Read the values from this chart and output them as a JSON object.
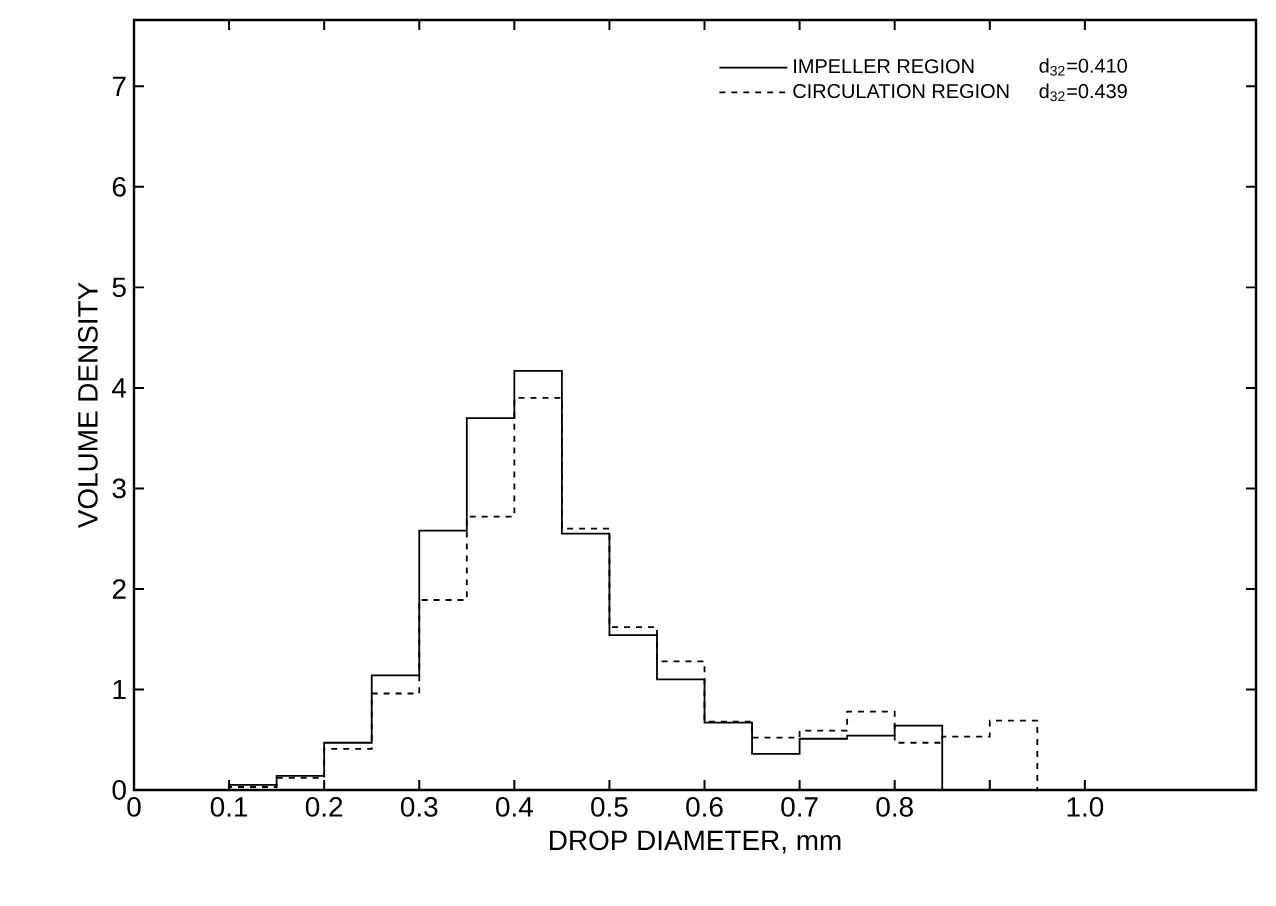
{
  "chart_data": {
    "type": "step",
    "xlabel": "DROP DIAMETER, mm",
    "ylabel": "VOLUME DENSITY",
    "series": [
      {
        "name": "IMPELLER REGION",
        "color": "#000000",
        "line_style": "solid",
        "x": [
          0.1,
          0.1,
          0.15,
          0.2,
          0.25,
          0.3,
          0.35,
          0.4,
          0.45,
          0.5,
          0.55,
          0.6,
          0.65,
          0.7,
          0.75,
          0.8,
          0.85,
          0.85
        ],
        "values": [
          0,
          0.05,
          0.14,
          0.47,
          1.14,
          2.58,
          3.7,
          4.17,
          2.55,
          1.54,
          1.1,
          0.67,
          0.36,
          0.51,
          0.54,
          0.64,
          0.64,
          0
        ]
      },
      {
        "name": "CIRCULATION REGION",
        "color": "#000000",
        "line_style": "dashed",
        "x": [
          0.1,
          0.1,
          0.15,
          0.2,
          0.25,
          0.3,
          0.35,
          0.4,
          0.45,
          0.5,
          0.55,
          0.6,
          0.65,
          0.7,
          0.75,
          0.8,
          0.85,
          0.9,
          0.95,
          0.95
        ],
        "values": [
          0,
          0.03,
          0.12,
          0.41,
          0.96,
          1.89,
          2.72,
          3.9,
          2.6,
          1.62,
          1.28,
          0.68,
          0.52,
          0.59,
          0.78,
          0.47,
          0.53,
          0.69,
          0.69,
          0
        ]
      }
    ],
    "annotations": [
      "d$_{32}$=0.410",
      "d$_{32}$=0.439"
    ],
    "xlim": [
      0,
      1.18
    ],
    "ylim": [
      0,
      7.66
    ],
    "xticks": [
      {
        "value": 0,
        "label": "0"
      },
      {
        "value": 0.1,
        "label": "0.1"
      },
      {
        "value": 0.2,
        "label": "0.2"
      },
      {
        "value": 0.3,
        "label": "0.3"
      },
      {
        "value": 0.4,
        "label": "0.4"
      },
      {
        "value": 0.5,
        "label": "0.5"
      },
      {
        "value": 0.6,
        "label": "0.6"
      },
      {
        "value": 0.7,
        "label": "0.7"
      },
      {
        "value": 0.8,
        "label": "0.8"
      },
      {
        "value": 0.9,
        "label": null
      },
      {
        "value": 1.0,
        "label": "1.0"
      }
    ],
    "yticks": [
      0,
      1,
      2,
      3,
      4,
      5,
      6,
      7
    ],
    "legend": "top right",
    "grid": false
  }
}
